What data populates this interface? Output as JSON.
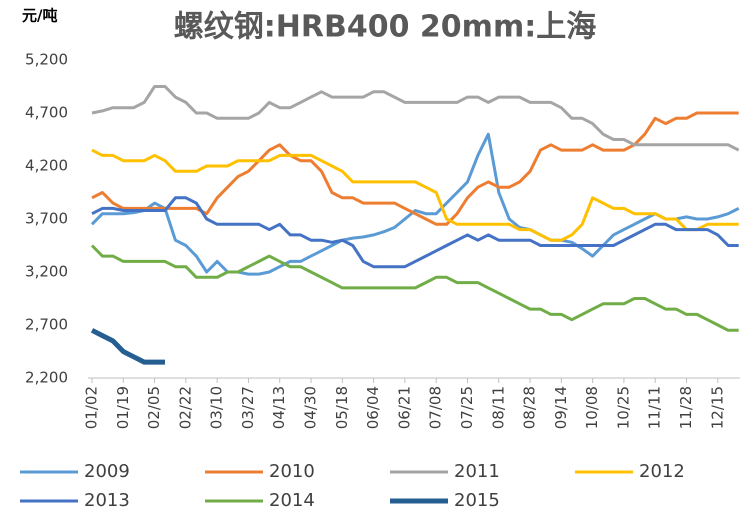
{
  "chart_data": {
    "type": "line",
    "title": "螺纹钢:HRB400 20mm:上海",
    "y_label": "元/吨",
    "categories": [
      "01/02",
      null,
      null,
      "01/19",
      null,
      null,
      "02/05",
      null,
      null,
      "02/22",
      null,
      null,
      "03/10",
      null,
      null,
      "03/27",
      null,
      null,
      "04/13",
      null,
      null,
      "04/30",
      null,
      null,
      "05/18",
      null,
      null,
      "06/04",
      null,
      null,
      "06/21",
      null,
      null,
      "07/08",
      null,
      null,
      "07/25",
      null,
      null,
      "08/11",
      null,
      null,
      "08/28",
      null,
      null,
      "09/14",
      null,
      null,
      "10/08",
      null,
      null,
      "10/25",
      null,
      null,
      "11/11",
      null,
      null,
      "11/28",
      null,
      null,
      "12/15",
      null,
      null
    ],
    "ylim": [
      2200,
      5200
    ],
    "yticks": [
      {
        "value": 2200,
        "label": "2,200"
      },
      {
        "value": 2700,
        "label": "2,700"
      },
      {
        "value": 3200,
        "label": "3,200"
      },
      {
        "value": 3700,
        "label": "3,700"
      },
      {
        "value": 4200,
        "label": "4,200"
      },
      {
        "value": 4700,
        "label": "4,700"
      },
      {
        "value": 5200,
        "label": "5,200"
      }
    ],
    "grid": false,
    "legend": "bottom",
    "series": [
      {
        "name": "2009",
        "color": "#5b9bd5",
        "values": [
          3650,
          3750,
          3750,
          3750,
          3760,
          3780,
          3850,
          3800,
          3500,
          3450,
          3350,
          3200,
          3300,
          3200,
          3200,
          3180,
          3180,
          3200,
          3250,
          3300,
          3300,
          3350,
          3400,
          3450,
          3500,
          3520,
          3530,
          3550,
          3580,
          3620,
          3700,
          3780,
          3750,
          3750,
          3850,
          3950,
          4050,
          4300,
          4500,
          3950,
          3700,
          3620,
          3600,
          3550,
          3500,
          3500,
          3480,
          3420,
          3350,
          3450,
          3550,
          3600,
          3650,
          3700,
          3750,
          3700,
          3700,
          3720,
          3700,
          3700,
          3720,
          3750,
          3800
        ]
      },
      {
        "name": "2010",
        "color": "#ed7d31",
        "values": [
          3900,
          3950,
          3850,
          3800,
          3800,
          3800,
          3800,
          3800,
          3800,
          3800,
          3800,
          3750,
          3900,
          4000,
          4100,
          4150,
          4250,
          4350,
          4400,
          4300,
          4250,
          4250,
          4150,
          3950,
          3900,
          3900,
          3850,
          3850,
          3850,
          3850,
          3800,
          3750,
          3700,
          3650,
          3650,
          3750,
          3900,
          4000,
          4050,
          4000,
          4000,
          4050,
          4150,
          4350,
          4400,
          4350,
          4350,
          4350,
          4400,
          4350,
          4350,
          4350,
          4400,
          4500,
          4650,
          4600,
          4650,
          4650,
          4700,
          4700,
          4700,
          4700,
          4700
        ]
      },
      {
        "name": "2011",
        "color": "#a5a5a5",
        "values": [
          4700,
          4720,
          4750,
          4750,
          4750,
          4800,
          4950,
          4950,
          4850,
          4800,
          4700,
          4700,
          4650,
          4650,
          4650,
          4650,
          4700,
          4800,
          4750,
          4750,
          4800,
          4850,
          4900,
          4850,
          4850,
          4850,
          4850,
          4900,
          4900,
          4850,
          4800,
          4800,
          4800,
          4800,
          4800,
          4800,
          4850,
          4850,
          4800,
          4850,
          4850,
          4850,
          4800,
          4800,
          4800,
          4750,
          4650,
          4650,
          4600,
          4500,
          4450,
          4450,
          4400,
          4400,
          4400,
          4400,
          4400,
          4400,
          4400,
          4400,
          4400,
          4400,
          4350
        ]
      },
      {
        "name": "2012",
        "color": "#ffc000",
        "values": [
          4350,
          4300,
          4300,
          4250,
          4250,
          4250,
          4300,
          4250,
          4150,
          4150,
          4150,
          4200,
          4200,
          4200,
          4250,
          4250,
          4250,
          4250,
          4300,
          4300,
          4300,
          4300,
          4250,
          4200,
          4150,
          4050,
          4050,
          4050,
          4050,
          4050,
          4050,
          4050,
          4000,
          3950,
          3700,
          3650,
          3650,
          3650,
          3650,
          3650,
          3650,
          3600,
          3600,
          3550,
          3500,
          3500,
          3550,
          3650,
          3900,
          3850,
          3800,
          3800,
          3750,
          3750,
          3750,
          3700,
          3700,
          3600,
          3600,
          3650,
          3650,
          3650,
          3650
        ]
      },
      {
        "name": "2013",
        "color": "#4472c4",
        "values": [
          3750,
          3800,
          3800,
          3780,
          3780,
          3780,
          3780,
          3780,
          3900,
          3900,
          3850,
          3700,
          3650,
          3650,
          3650,
          3650,
          3650,
          3600,
          3650,
          3550,
          3550,
          3500,
          3500,
          3480,
          3500,
          3450,
          3300,
          3250,
          3250,
          3250,
          3250,
          3300,
          3350,
          3400,
          3450,
          3500,
          3550,
          3500,
          3550,
          3500,
          3500,
          3500,
          3500,
          3450,
          3450,
          3450,
          3450,
          3450,
          3450,
          3450,
          3450,
          3500,
          3550,
          3600,
          3650,
          3650,
          3600,
          3600,
          3600,
          3600,
          3550,
          3450,
          3450
        ]
      },
      {
        "name": "2014",
        "color": "#70ad47",
        "values": [
          3450,
          3350,
          3350,
          3300,
          3300,
          3300,
          3300,
          3300,
          3250,
          3250,
          3150,
          3150,
          3150,
          3200,
          3200,
          3250,
          3300,
          3350,
          3300,
          3250,
          3250,
          3200,
          3150,
          3100,
          3050,
          3050,
          3050,
          3050,
          3050,
          3050,
          3050,
          3050,
          3100,
          3150,
          3150,
          3100,
          3100,
          3100,
          3050,
          3000,
          2950,
          2900,
          2850,
          2850,
          2800,
          2800,
          2750,
          2800,
          2850,
          2900,
          2900,
          2900,
          2950,
          2950,
          2900,
          2850,
          2850,
          2800,
          2800,
          2750,
          2700,
          2650,
          2650
        ]
      },
      {
        "name": "2015",
        "color": "#255e91",
        "values": [
          2650,
          2600,
          2550,
          2450,
          2400,
          2350,
          2350,
          2350,
          null,
          null,
          null,
          null,
          null,
          null,
          null,
          null,
          null,
          null,
          null,
          null,
          null,
          null,
          null,
          null,
          null,
          null,
          null,
          null,
          null,
          null,
          null,
          null,
          null,
          null,
          null,
          null,
          null,
          null,
          null,
          null,
          null,
          null,
          null,
          null,
          null,
          null,
          null,
          null,
          null,
          null,
          null,
          null,
          null,
          null,
          null,
          null,
          null,
          null,
          null,
          null,
          null,
          null,
          null
        ]
      }
    ]
  }
}
